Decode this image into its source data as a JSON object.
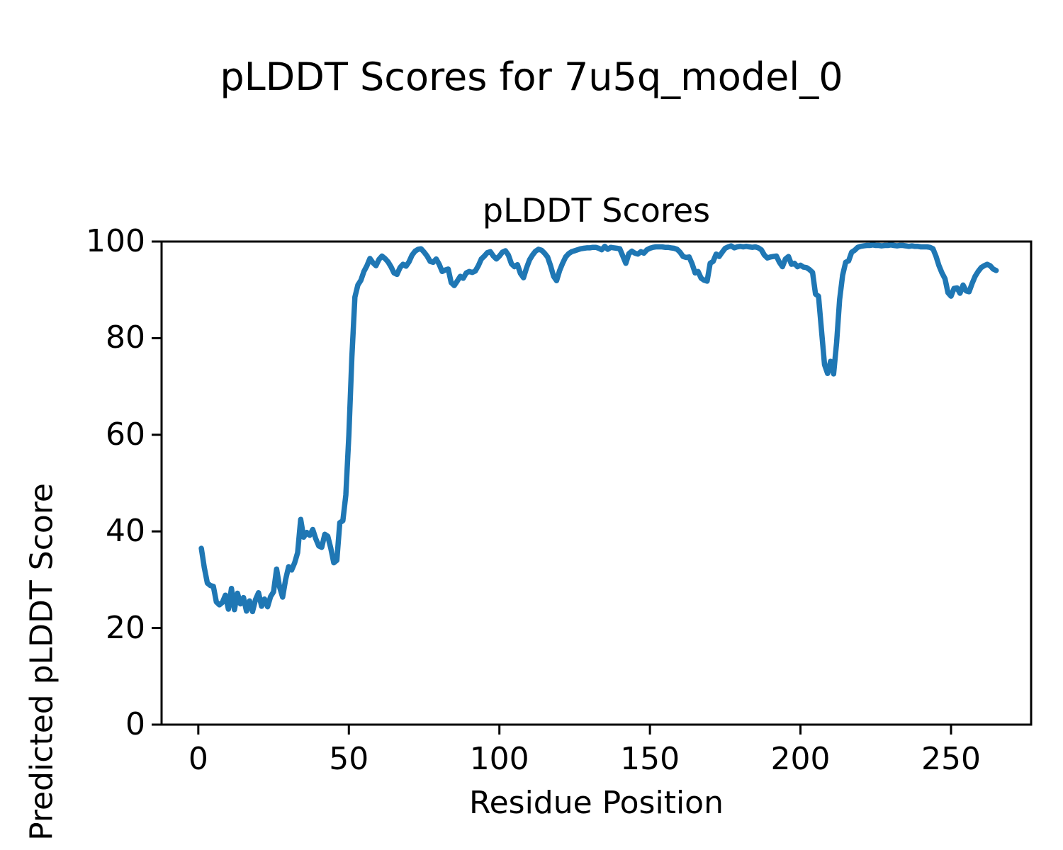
{
  "figure": {
    "suptitle": "pLDDT Scores for 7u5q_model_0",
    "background_color": "#ffffff",
    "text_color": "#000000",
    "frame_color": "#000000"
  },
  "chart_data": {
    "type": "line",
    "title": "pLDDT Scores",
    "xlabel": "Residue Position",
    "ylabel": "Predicted pLDDT Score",
    "xlim": [
      -12.2,
      276.6
    ],
    "ylim": [
      0,
      100
    ],
    "xticks": [
      0,
      50,
      100,
      150,
      200,
      250
    ],
    "yticks": [
      0,
      20,
      40,
      60,
      80,
      100
    ],
    "grid": false,
    "legend_position": "none",
    "line_color": "#1f77b4",
    "series": [
      {
        "name": "pLDDT",
        "x_start": 1,
        "x_step": 1,
        "y": [
          36.5,
          32.5,
          29.3,
          28.8,
          28.6,
          25.4,
          24.8,
          25.3,
          26.8,
          23.9,
          28.2,
          23.8,
          27.2,
          25.0,
          26.3,
          23.5,
          25.6,
          23.4,
          25.9,
          27.3,
          24.5,
          26.0,
          24.4,
          26.5,
          27.5,
          32.2,
          28.5,
          26.4,
          30.0,
          32.7,
          32.0,
          33.5,
          35.6,
          42.5,
          38.8,
          39.8,
          39.2,
          40.4,
          38.5,
          37.0,
          36.7,
          39.4,
          39.0,
          36.5,
          33.5,
          34.0,
          41.8,
          42.2,
          47.5,
          60.0,
          76.0,
          88.5,
          91.0,
          92.0,
          93.8,
          95.0,
          96.5,
          95.6,
          95.0,
          96.3,
          97.0,
          96.5,
          95.8,
          94.8,
          93.5,
          93.2,
          94.6,
          95.3,
          94.9,
          95.8,
          97.2,
          98.0,
          98.4,
          98.5,
          97.8,
          97.0,
          95.9,
          95.7,
          96.4,
          95.3,
          93.8,
          94.1,
          94.3,
          91.5,
          90.9,
          91.8,
          92.8,
          92.4,
          93.5,
          93.8,
          93.6,
          93.9,
          95.0,
          96.4,
          97.0,
          97.7,
          97.9,
          97.0,
          96.4,
          97.0,
          97.8,
          98.1,
          97.2,
          95.4,
          94.8,
          95.2,
          93.4,
          92.5,
          94.5,
          96.2,
          97.2,
          98.0,
          98.4,
          98.2,
          97.6,
          96.8,
          95.0,
          92.8,
          91.9,
          94.0,
          95.5,
          96.8,
          97.5,
          97.9,
          98.1,
          98.3,
          98.5,
          98.6,
          98.7,
          98.7,
          98.8,
          98.8,
          98.6,
          98.3,
          99.0,
          98.4,
          98.8,
          98.7,
          98.6,
          98.5,
          97.0,
          95.5,
          97.5,
          98.0,
          97.6,
          97.4,
          97.9,
          97.6,
          98.3,
          98.6,
          98.8,
          98.9,
          98.9,
          98.9,
          98.8,
          98.8,
          98.7,
          98.6,
          98.4,
          97.8,
          96.9,
          96.7,
          96.8,
          95.4,
          93.5,
          93.8,
          92.4,
          92.0,
          91.8,
          95.5,
          95.9,
          97.4,
          96.9,
          97.8,
          98.6,
          98.9,
          99.1,
          98.7,
          98.9,
          99.0,
          98.9,
          99.0,
          98.9,
          98.8,
          98.9,
          98.7,
          98.3,
          97.2,
          96.6,
          96.8,
          96.9,
          97.0,
          95.7,
          94.8,
          96.4,
          96.9,
          95.3,
          95.5,
          94.8,
          95.1,
          94.7,
          94.6,
          94.2,
          93.6,
          89.1,
          88.7,
          81.5,
          74.5,
          72.7,
          75.2,
          72.6,
          79.0,
          88.0,
          93.0,
          95.7,
          96.0,
          97.8,
          98.2,
          98.8,
          99.0,
          99.1,
          99.2,
          99.2,
          99.3,
          99.2,
          99.2,
          99.1,
          99.2,
          99.2,
          99.3,
          99.2,
          99.1,
          99.2,
          99.2,
          99.1,
          99.0,
          99.1,
          99.0,
          99.0,
          98.9,
          98.9,
          98.9,
          98.8,
          98.5,
          97.0,
          95.0,
          93.5,
          92.3,
          89.4,
          88.7,
          90.3,
          90.4,
          89.3,
          91.0,
          89.8,
          89.6,
          91.3,
          92.8,
          93.8,
          94.6,
          95.0,
          95.3,
          95.0,
          94.3,
          94.0
        ]
      }
    ]
  }
}
